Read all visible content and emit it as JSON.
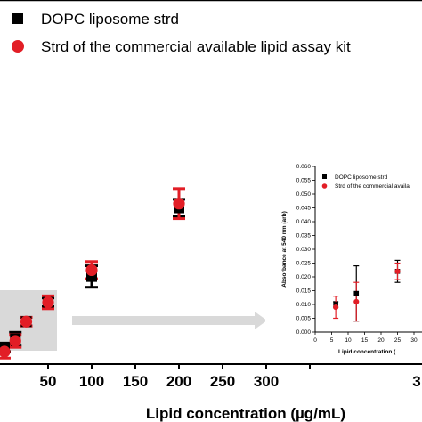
{
  "chart_data": [
    {
      "type": "scatter",
      "xlabel": "Lipid concentration (µg/mL)",
      "x_ticks": [
        "50",
        "100",
        "150",
        "200",
        "250",
        "300",
        "3"
      ],
      "legend": {
        "placement": "top-left",
        "entries": [
          {
            "label": "DOPC liposome strd",
            "marker": "square",
            "color": "#000000"
          },
          {
            "label": "Strd of the commercial available lipid assay kit",
            "marker": "circle",
            "color": "#e21e26"
          }
        ]
      },
      "series": [
        {
          "name": "DOPC liposome strd",
          "color": "#000000",
          "marker": "square",
          "points": [
            {
              "x": 0,
              "y": 0.01,
              "err": 0.002
            },
            {
              "x": 12.5,
              "y": 0.014,
              "err": 0.003
            },
            {
              "x": 25,
              "y": 0.022,
              "err": 0.002
            },
            {
              "x": 50,
              "y": 0.031,
              "err": 0.002
            },
            {
              "x": 100,
              "y": 0.043,
              "err": 0.005
            },
            {
              "x": 200,
              "y": 0.075,
              "err": 0.004
            }
          ]
        },
        {
          "name": "Strd of the commercial available lipid assay kit",
          "color": "#e21e26",
          "marker": "circle",
          "points": [
            {
              "x": 0,
              "y": 0.008,
              "err": 0.003
            },
            {
              "x": 12.5,
              "y": 0.013,
              "err": 0.003
            },
            {
              "x": 25,
              "y": 0.022,
              "err": 0.002
            },
            {
              "x": 50,
              "y": 0.031,
              "err": 0.003
            },
            {
              "x": 100,
              "y": 0.046,
              "err": 0.004
            },
            {
              "x": 200,
              "y": 0.077,
              "err": 0.007
            }
          ]
        }
      ],
      "highlight_region": {
        "x": [
          0,
          62
        ]
      },
      "arrow_to_inset": true
    },
    {
      "type": "scatter",
      "role": "inset",
      "ylabel": "Absorbance at 540 nm (arb)",
      "xlabel": "Lipid concentration (",
      "y_ticks": [
        "0.060",
        "0.055",
        "0.050",
        "0.045",
        "0.040",
        "0.035",
        "0.030",
        "0.025",
        "0.020",
        "0.015",
        "0.010",
        "0.005",
        "0.000"
      ],
      "x_ticks": [
        "0",
        "5",
        "10",
        "15",
        "20",
        "25",
        "30",
        "3"
      ],
      "ylim": [
        0,
        0.06
      ],
      "legend": {
        "placement": "top-left",
        "entries": [
          {
            "label": "DOPC liposome strd",
            "marker": "square",
            "color": "#000000"
          },
          {
            "label": "Strd of the commercial availa",
            "marker": "circle",
            "color": "#e21e26"
          }
        ]
      },
      "series": [
        {
          "name": "DOPC liposome strd",
          "color": "#000000",
          "marker": "square",
          "points": [
            {
              "x": 6.25,
              "y": 0.01,
              "err": 0.001
            },
            {
              "x": 12.5,
              "y": 0.014,
              "err": 0.01
            },
            {
              "x": 25,
              "y": 0.022,
              "err": 0.004
            }
          ]
        },
        {
          "name": "Strd of the commercial available lipid assay kit",
          "color": "#e21e26",
          "marker": "circle",
          "points": [
            {
              "x": 6.25,
              "y": 0.009,
              "err": 0.004
            },
            {
              "x": 12.5,
              "y": 0.011,
              "err": 0.007
            },
            {
              "x": 25,
              "y": 0.022,
              "err": 0.003
            }
          ]
        }
      ]
    }
  ]
}
